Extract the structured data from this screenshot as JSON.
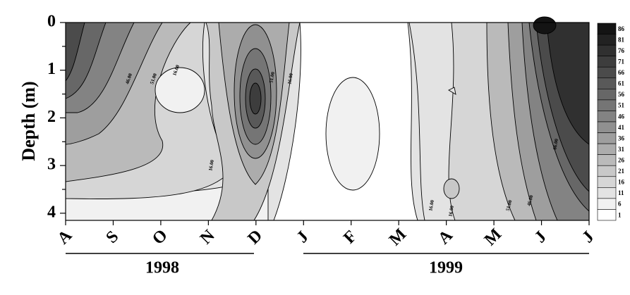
{
  "chart_data": {
    "type": "contour",
    "y_label": "Depth (m)",
    "categories": [
      "A",
      "S",
      "O",
      "N",
      "D",
      "J",
      "F",
      "M",
      "A",
      "M",
      "J",
      "J"
    ],
    "years": [
      "1998",
      "1999"
    ],
    "ylim": [
      0,
      4.15
    ],
    "yticks": [
      0,
      1,
      2,
      3,
      4
    ],
    "yminorticks": [
      0.5,
      1.5,
      2.5,
      3.5
    ],
    "levels": [
      86,
      81,
      76,
      71,
      66,
      61,
      56,
      51,
      46,
      41,
      36,
      31,
      26,
      21,
      16,
      11,
      6,
      1
    ],
    "contour_labels": {
      "values": [
        46,
        51,
        16,
        51,
        16,
        16,
        16,
        16,
        51,
        46,
        66
      ],
      "value_labels": [
        "46.00",
        "51.00",
        "16.00",
        "51.00",
        "16.00",
        "16.00",
        "16.00",
        "16.00",
        "51.00",
        "46.00",
        "66.00"
      ]
    }
  }
}
